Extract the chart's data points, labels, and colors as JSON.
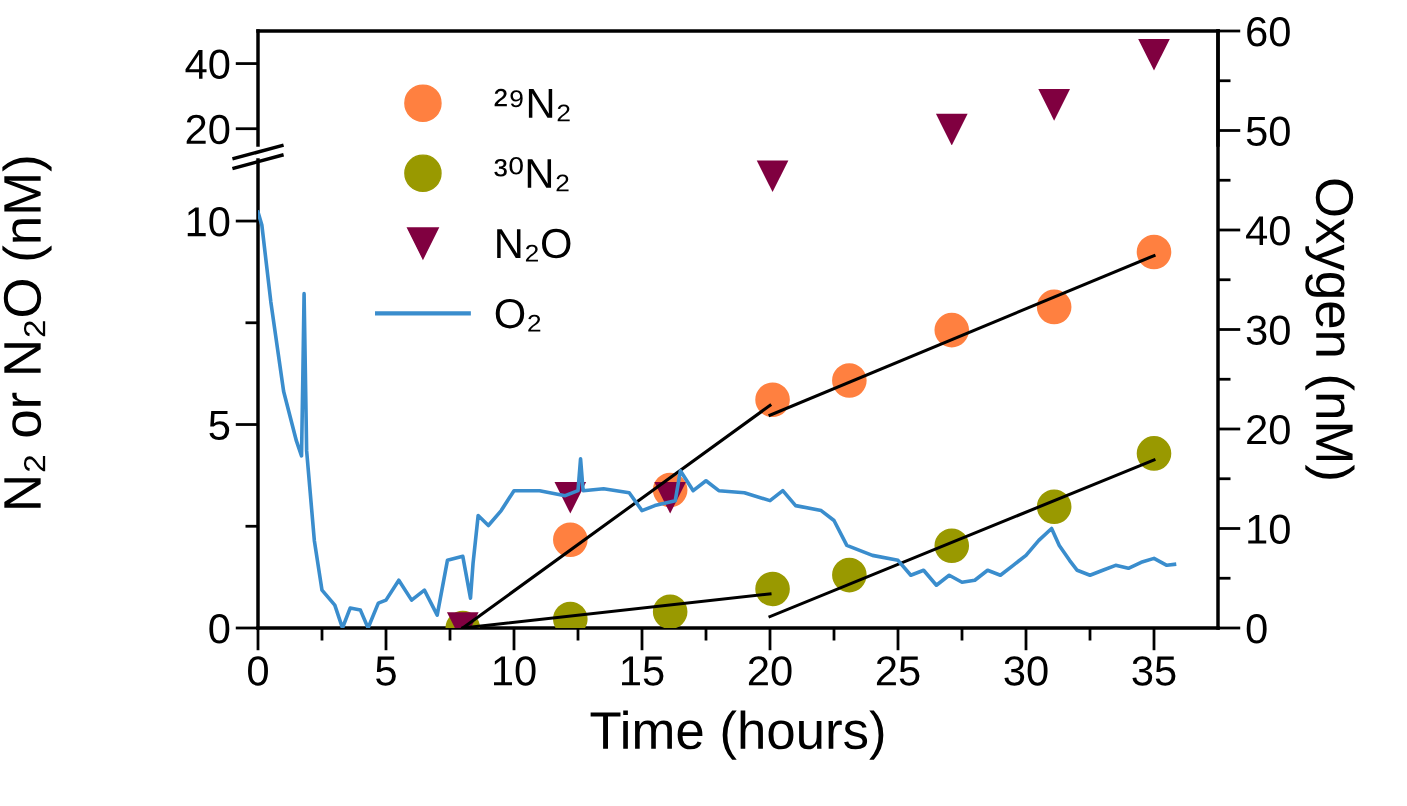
{
  "chart_data": [
    {
      "type": "scatter",
      "xlim": [
        0,
        37.5
      ],
      "ylim": [
        15,
        50
      ],
      "yticks": [
        20,
        40
      ],
      "tick_labels": "y",
      "marker": "triangle",
      "series": [
        {
          "color": "#800040",
          "x": [
            27.1,
            31.1,
            35.0
          ],
          "values": [
            19.7,
            27.3,
            42.7
          ]
        }
      ]
    },
    {
      "type": "scatter",
      "xlabel": "Time (hours)",
      "ylabel": "N₂ or N₂O (nM)",
      "y2label": "Oxygen (nM)",
      "legend": "top left",
      "marker": "circle",
      "xlim": [
        0,
        37.5
      ],
      "xticks": [
        0,
        {
          "value": 2.5,
          "label": null
        },
        5,
        {
          "value": 7.5,
          "label": null
        },
        10,
        {
          "value": 12.5,
          "label": null
        },
        15,
        {
          "value": 17.5,
          "label": null
        },
        20,
        {
          "value": 22.5,
          "label": null
        },
        25,
        {
          "value": 27.5,
          "label": null
        },
        30,
        {
          "value": 32.5,
          "label": null
        },
        35
      ],
      "ylim": [
        0,
        11.5
      ],
      "yticks": [
        0,
        {
          "value": 2.5,
          "label": null
        },
        5,
        {
          "value": 7.5,
          "label": null
        },
        10
      ],
      "y2lim": [
        0,
        60
      ],
      "y2ticks": [
        0,
        {
          "value": 5,
          "label": null
        },
        10,
        {
          "value": 15,
          "label": null
        },
        20,
        {
          "value": 25,
          "label": null
        },
        30,
        {
          "value": 35,
          "label": null
        },
        40,
        {
          "value": 45,
          "label": null
        },
        50,
        {
          "value": 55,
          "label": null
        },
        60
      ],
      "series": [
        {
          "name": "²⁹N₂",
          "color": "#ff8040",
          "x": [
            12.2,
            16.1,
            20.1,
            23.1,
            27.1,
            31.1,
            35.0
          ],
          "values": [
            2.17,
            3.39,
            5.61,
            6.08,
            7.32,
            7.89,
            9.24
          ]
        },
        {
          "name": "³⁰N₂",
          "color": "#999900",
          "x": [
            8,
            12.2,
            16.1,
            20.1,
            23.1,
            27.1,
            31.1,
            35.0
          ],
          "values": [
            0,
            0.22,
            0.4,
            0.96,
            1.3,
            2.02,
            2.98,
            4.29
          ]
        },
        {
          "name": "N₂O",
          "color": "#800040",
          "marker": "triangle",
          "x": [
            8,
            12.2,
            16.1,
            20.1
          ],
          "values": [
            0,
            3.2,
            3.2,
            11.1
          ]
        },
        {
          "type": "line",
          "color": "#000000",
          "marker": "none",
          "line_style": "solid",
          "x": [
            8,
            20
          ],
          "values": [
            0,
            5.47
          ]
        },
        {
          "type": "line",
          "color": "#000000",
          "marker": "none",
          "line_style": "solid",
          "x": [
            20,
            35
          ],
          "values": [
            5.23,
            9.15
          ]
        },
        {
          "type": "line",
          "color": "#000000",
          "marker": "none",
          "line_style": "solid",
          "x": [
            8,
            20
          ],
          "values": [
            0,
            0.84
          ]
        },
        {
          "type": "line",
          "color": "#000000",
          "marker": "none",
          "line_style": "solid",
          "x": [
            20,
            35
          ],
          "values": [
            0.28,
            4.13
          ]
        },
        {
          "name": "O₂",
          "type": "line",
          "axis": "y2",
          "color": "#3a8dcd",
          "marker": "none",
          "line_style": "solid",
          "x": [
            0,
            0.15,
            0.5,
            1.0,
            1.5,
            1.7,
            1.75,
            1.8,
            1.9,
            2.2,
            2.5,
            3.0,
            3.3,
            3.6,
            4.0,
            4.3,
            4.7,
            5.0,
            5.5,
            6.0,
            6.5,
            7.0,
            7.4,
            8.0,
            8.3,
            8.4,
            8.6,
            9.0,
            9.5,
            10.0,
            11.0,
            12.0,
            12.5,
            12.6,
            12.7,
            13.5,
            14.5,
            15.0,
            15.5,
            16.3,
            16.5,
            17.0,
            17.5,
            18.0,
            19.0,
            20.0,
            20.5,
            21.0,
            22.0,
            22.5,
            23.0,
            24.0,
            25.0,
            25.5,
            26.0,
            26.5,
            27.0,
            27.5,
            28.0,
            28.5,
            29.0,
            29.5,
            30.0,
            30.5,
            31.0,
            31.3,
            31.7,
            32.0,
            32.5,
            33.0,
            33.5,
            34.0,
            34.5,
            35.0,
            35.5,
            35.8
          ],
          "values": [
            41.8,
            40.5,
            32.8,
            23.8,
            18.8,
            17.3,
            25.0,
            33.6,
            17.8,
            8.8,
            3.8,
            2.3,
            0,
            2.0,
            1.8,
            0,
            2.5,
            2.8,
            4.8,
            2.8,
            3.8,
            1.3,
            6.8,
            7.2,
            3.0,
            6.5,
            11.3,
            10.3,
            11.8,
            13.8,
            13.8,
            13.3,
            13.8,
            17.0,
            13.8,
            14.0,
            13.6,
            11.8,
            12.3,
            12.8,
            15.8,
            13.8,
            14.8,
            13.8,
            13.6,
            12.8,
            13.8,
            12.3,
            11.8,
            10.8,
            8.3,
            7.3,
            6.8,
            5.3,
            5.8,
            4.3,
            5.3,
            4.6,
            4.8,
            5.8,
            5.3,
            6.3,
            7.3,
            8.8,
            10.0,
            8.3,
            6.8,
            5.8,
            5.3,
            5.8,
            6.3,
            6.0,
            6.6,
            7.0,
            6.3,
            6.4
          ]
        }
      ]
    }
  ]
}
